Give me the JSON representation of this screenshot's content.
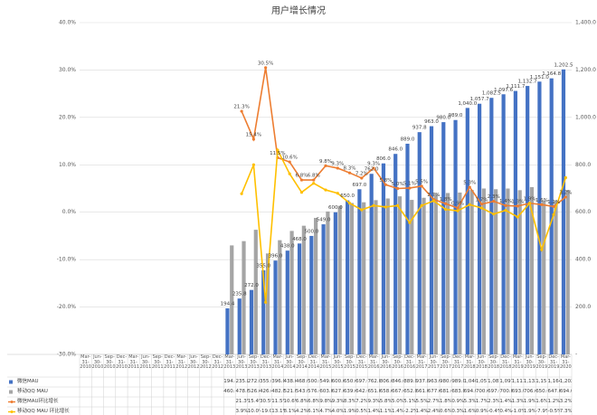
{
  "chart_data": {
    "type": "combo",
    "title": "用户增长情况",
    "categories": [
      "Mar-31-2010",
      "Jun-30-2010",
      "Sep-30-2010",
      "Dec-31-2010",
      "Mar-31-2011",
      "Jun-30-2011",
      "Sep-30-2011",
      "Dec-31-2011",
      "Mar-31-2012",
      "Jun-30-2012",
      "Sep-30-2012",
      "Dec-31-2012",
      "Mar-31-2013",
      "Jun-30-2013",
      "Sep-30-2013",
      "Dec-31-2013",
      "Mar-31-2014",
      "Jun-30-2014",
      "Sep-30-2014",
      "Dec-31-2014",
      "Mar-31-2015",
      "Jun-30-2015",
      "Sep-30-2015",
      "Dec-31-2015",
      "Mar-31-2016",
      "Jun-30-2016",
      "Sep-30-2016",
      "Dec-31-2016",
      "Mar-31-2017",
      "Jun-30-2017",
      "Sep-30-2017",
      "Dec-31-2017",
      "Mar-31-2018",
      "Jun-30-2018",
      "Sep-30-2018",
      "Dec-31-2018",
      "Mar-31-2019",
      "Jun-30-2019",
      "Sep-30-2019",
      "Dec-31-2019",
      "Mar-31-2020"
    ],
    "ylim": [
      -30,
      40
    ],
    "yticks": [
      {
        "value": -30,
        "label": "-30.0%"
      },
      {
        "value": -20,
        "label": "-20.0%"
      },
      {
        "value": -10,
        "label": "-10.0%"
      },
      {
        "value": 0,
        "label": "0.0%"
      },
      {
        "value": 10,
        "label": "10.0%"
      },
      {
        "value": 20,
        "label": "20.0%"
      },
      {
        "value": 30,
        "label": "30.0%"
      },
      {
        "value": 40,
        "label": "40.0%"
      }
    ],
    "y2lim": [
      0,
      1400
    ],
    "y2ticks": [
      {
        "value": 0,
        "label": "-"
      },
      {
        "value": 200,
        "label": "200.0"
      },
      {
        "value": 400,
        "label": "400.0"
      },
      {
        "value": 600,
        "label": "600.0"
      },
      {
        "value": 800,
        "label": "800.0"
      },
      {
        "value": 1000,
        "label": "1,000.0"
      },
      {
        "value": 1200,
        "label": "1,200.0"
      },
      {
        "value": 1400,
        "label": "1,400.0"
      }
    ],
    "grid": true,
    "series": [
      {
        "name": "微信MAU",
        "type": "bar",
        "axis": "y2",
        "color": "#4472c4",
        "values": [
          null,
          null,
          null,
          null,
          null,
          null,
          null,
          null,
          null,
          null,
          null,
          null,
          194.4,
          235.8,
          272,
          355,
          396,
          438,
          468,
          500,
          549,
          600,
          650,
          697,
          762,
          806,
          846,
          889,
          937.8,
          963,
          980,
          989,
          1040,
          1057.7,
          1082.5,
          1097.6,
          1111.7,
          1132.7,
          1151,
          1164.8,
          1202.5
        ],
        "value_labels": [
          null,
          null,
          null,
          null,
          null,
          null,
          null,
          null,
          null,
          null,
          null,
          null,
          "194.4",
          "235.8",
          "272.0",
          "355.0",
          "396.0",
          "438.0",
          "468.0",
          "500.0",
          "549.0",
          "600.0",
          "650.0",
          "697.0",
          "762.0",
          "806.0",
          "846.0",
          "889.0",
          "937.8",
          "963.0",
          "980.0",
          "989.0",
          "1,040.0",
          "1,057.7",
          "1,082.5",
          "1,097.6",
          "1,111.7",
          "1,132.7",
          "1,151.0",
          "1,164.8",
          "1,202.5"
        ]
      },
      {
        "name": "移动QQ MAU",
        "type": "bar",
        "axis": "y2",
        "color": "#a5a5a5",
        "values": [
          null,
          null,
          null,
          null,
          null,
          null,
          null,
          null,
          null,
          null,
          null,
          null,
          460,
          478,
          526,
          426,
          482,
          521,
          543,
          576,
          603,
          627,
          639,
          642,
          651,
          658,
          667,
          652,
          661,
          677,
          681,
          683,
          694,
          700,
          697,
          700,
          693,
          706,
          650,
          647,
          694
        ],
        "value_labels": [
          null,
          null,
          null,
          null,
          null,
          null,
          null,
          null,
          null,
          null,
          null,
          null,
          "460.0",
          "478.0",
          "526.0",
          "426.0",
          "482.0",
          "521.0",
          "543.0",
          "576.0",
          "603.0",
          "627.0",
          "639.0",
          "642.0",
          "651.0",
          "658.0",
          "667.0",
          "652.0",
          "661.0",
          "677.0",
          "681.0",
          "683.0",
          "694.0",
          "700.0",
          "697.0",
          "700.0",
          "693.0",
          "706.0",
          "650.0",
          "647.0",
          "694.0"
        ]
      },
      {
        "name": "微信MAU环比增长",
        "type": "line",
        "color": "#ed7d31",
        "values": [
          null,
          null,
          null,
          null,
          null,
          null,
          null,
          null,
          null,
          null,
          null,
          null,
          null,
          21.3,
          15.4,
          30.5,
          11.5,
          10.6,
          6.8,
          6.8,
          9.8,
          9.3,
          8.3,
          7.2,
          9.3,
          5.8,
          5.0,
          5.1,
          5.5,
          2.7,
          1.8,
          0.9,
          5.3,
          1.7,
          2.3,
          1.4,
          1.3,
          1.9,
          1.6,
          1.2,
          3.2
        ],
        "value_labels": [
          null,
          null,
          null,
          null,
          null,
          null,
          null,
          null,
          null,
          null,
          null,
          null,
          null,
          "21.3%",
          "15.4%",
          "30.5%",
          "11.5%",
          "10.6%",
          "6.8%",
          "6.8%",
          "9.8%",
          "9.3%",
          "8.3%",
          "7.2%",
          "9.3%",
          "5.8%",
          "5.0%",
          "5.1%",
          "5.5%",
          "2.7%",
          "1.8%",
          "0.9%",
          "5.3%",
          "1.7%",
          "2.3%",
          "1.4%",
          "1.3%",
          "1.9%",
          "1.6%",
          "1.2%",
          "3.2%"
        ]
      },
      {
        "name": "移动QQ MAU 环比增长",
        "type": "line",
        "color": "#ffc000",
        "values": [
          null,
          null,
          null,
          null,
          null,
          null,
          null,
          null,
          null,
          null,
          null,
          null,
          null,
          3.9,
          10.0,
          -19.0,
          13.1,
          8.1,
          4.2,
          6.1,
          4.7,
          4.0,
          1.9,
          0.5,
          1.4,
          1.1,
          1.4,
          -2.2,
          1.4,
          2.4,
          0.6,
          0.3,
          1.6,
          0.9,
          -0.4,
          0.4,
          -1.0,
          1.9,
          -7.9,
          -0.5,
          7.3
        ],
        "value_labels": [
          null,
          null,
          null,
          null,
          null,
          null,
          null,
          null,
          null,
          null,
          null,
          null,
          null,
          "3.9%",
          "10.0%",
          "-19.0%",
          "13.1%",
          "8.1%",
          "4.2%",
          "6.1%",
          "4.7%",
          "4.0%",
          "1.9%",
          "0.5%",
          "1.4%",
          "1.1%",
          "1.4%",
          "-2.2%",
          "1.4%",
          "2.4%",
          "0.6%",
          "0.3%",
          "1.6%",
          "0.9%",
          "-0.4%",
          "0.4%",
          "-1.0%",
          "1.9%",
          "-7.9%",
          "-0.5%",
          "7.3%"
        ]
      }
    ]
  }
}
